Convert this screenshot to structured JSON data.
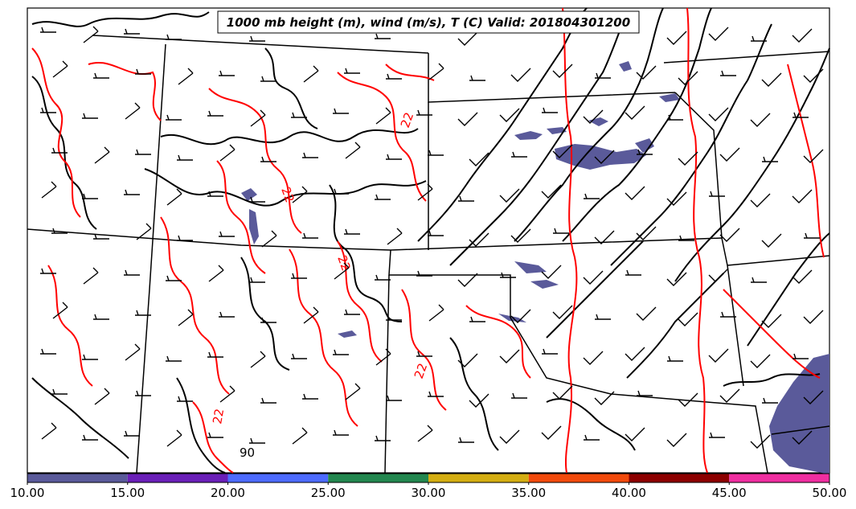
{
  "title": "1000 mb height (m), wind (m/s), T (C) Valid: 201804301200",
  "contour_labels": {
    "temp_label": "22",
    "height_label": "90"
  },
  "colorbar": {
    "ticks": [
      "10.00",
      "15.00",
      "20.00",
      "25.00",
      "30.00",
      "35.00",
      "40.00",
      "45.00",
      "50.00"
    ],
    "bins": [
      {
        "from": 10,
        "to": 15,
        "color": "#5a5a9a"
      },
      {
        "from": 15,
        "to": 20,
        "color": "#6a1fb8"
      },
      {
        "from": 20,
        "to": 25,
        "color": "#4d6bff"
      },
      {
        "from": 25,
        "to": 30,
        "color": "#23874f"
      },
      {
        "from": 30,
        "to": 35,
        "color": "#d4ae12"
      },
      {
        "from": 35,
        "to": 40,
        "color": "#f24a0c"
      },
      {
        "from": 40,
        "to": 45,
        "color": "#8c0000"
      },
      {
        "from": 45,
        "to": 50,
        "color": "#ef2ea0"
      }
    ]
  },
  "colors": {
    "height_contours": "#000000",
    "temperature_contours": "#ff0000",
    "state_borders": "#000000",
    "wind_barbs": "#000000",
    "shaded_wind": "#5a5a9a"
  }
}
